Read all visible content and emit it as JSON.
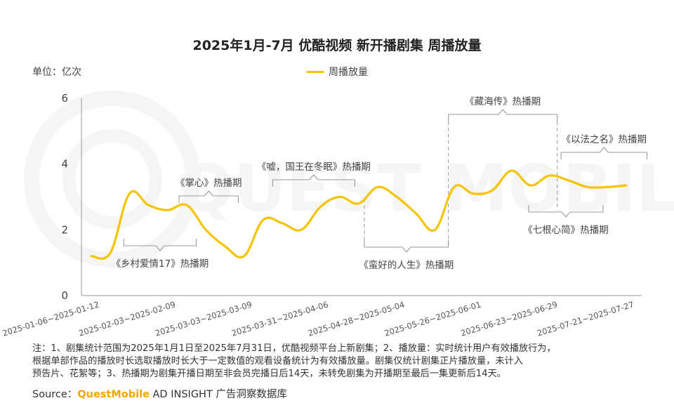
{
  "chart_data": {
    "type": "line",
    "title": "2025年1月-7月 优酷视频 新开播剧集 周播放量",
    "unit_label": "单位：亿次",
    "legend": [
      "周播放量"
    ],
    "y_ticks": [
      0,
      2,
      4,
      6
    ],
    "ylim": [
      0,
      6
    ],
    "x_tick_labels": [
      "2025-01-06~2025-01-12",
      "2025-02-03~2025-02-09",
      "2025-03-03~2025-03-09",
      "2025-03-31~2025-04-06",
      "2025-04-28~2025-05-04",
      "2025-05-26~2025-06-01",
      "2025-06-23~2025-06-29",
      "2025-07-21~2025-07-27"
    ],
    "x_tick_week_index": [
      0,
      4,
      8,
      12,
      16,
      20,
      24,
      28
    ],
    "series": [
      {
        "name": "周播放量",
        "color": "#F5C400",
        "values": [
          1.2,
          1.3,
          3.1,
          2.75,
          2.6,
          2.75,
          2.0,
          1.5,
          1.2,
          2.3,
          2.2,
          2.0,
          2.7,
          3.0,
          2.8,
          3.3,
          3.0,
          2.5,
          2.0,
          3.3,
          3.1,
          3.2,
          3.8,
          3.35,
          3.65,
          3.5,
          3.3,
          3.3,
          3.35
        ]
      }
    ],
    "annotations": [
      {
        "label": "《乡村爱情17》热播期",
        "start": 1.7,
        "end": 5.5,
        "side": "below"
      },
      {
        "label": "《掌心》热播期",
        "start": 4.6,
        "end": 7.7,
        "side": "above"
      },
      {
        "label": "《嘘，国王在冬眠》热播期",
        "start": 9.5,
        "end": 13.8,
        "side": "above"
      },
      {
        "label": "《蛮好的人生》热播期",
        "start": 14.3,
        "end": 18.7,
        "side": "below"
      },
      {
        "label": "《藏海传》热播期",
        "start": 18.7,
        "end": 24.4,
        "side": "above"
      },
      {
        "label": "《七根心简》热播期",
        "start": 22.9,
        "end": 26.8,
        "side": "below"
      },
      {
        "label": "《以法之名》热播期",
        "start": 24.6,
        "end": 29.1,
        "side": "above"
      }
    ]
  },
  "notes": [
    "注：1、剧集统计范围为2025年1月1日至2025年7月31日，优酷视频平台上新剧集；2、播放量：实时统计用户有效播放行为，",
    "根据单部作品的播放时长选取播放时长大于一定数值的观看设备统计为有效播放量。剧集仅统计剧集正片播放量，未计入",
    "预告片、花絮等；3、热播期为剧集开播日期至非会员完播日后14天，未转免剧集为开播期至最后一集更新后14天。"
  ],
  "source": {
    "prefix": "Source：",
    "brand": "QuestMobile",
    "suffix": " AD INSIGHT 广告洞察数据库"
  },
  "watermark": "QUEST MOBILE"
}
